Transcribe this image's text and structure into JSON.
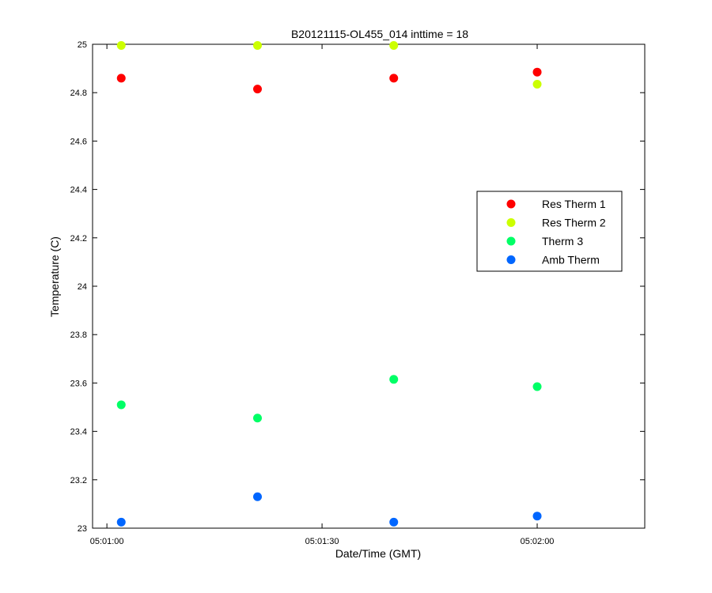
{
  "chart_data": {
    "type": "scatter",
    "title": "B20121115-OL455_014 inttime = 18",
    "xlabel": "Date/Time (GMT)",
    "ylabel": "Temperature (C)",
    "xlim": [
      "05:00:58",
      "05:02:15"
    ],
    "ylim": [
      23,
      25
    ],
    "x_ticks": [
      "05:01:00",
      "05:01:30",
      "05:02:00"
    ],
    "y_ticks": [
      "23",
      "23.2",
      "23.4",
      "23.6",
      "23.8",
      "24",
      "24.2",
      "24.4",
      "24.6",
      "24.8",
      "25"
    ],
    "grid": false,
    "legend_position": "right",
    "x": [
      "05:01:02",
      "05:01:21",
      "05:01:40",
      "05:02:00"
    ],
    "series": [
      {
        "name": "Res Therm 1",
        "color": "#ff0000",
        "values": [
          24.86,
          24.815,
          24.86,
          24.885
        ]
      },
      {
        "name": "Res Therm 2",
        "color": "#ccff00",
        "values": [
          24.995,
          24.995,
          24.995,
          24.835
        ]
      },
      {
        "name": "Therm 3",
        "color": "#00ff66",
        "values": [
          23.51,
          23.455,
          23.615,
          23.585
        ]
      },
      {
        "name": "Amb Therm",
        "color": "#0066ff",
        "values": [
          23.025,
          23.13,
          23.025,
          23.05
        ]
      }
    ]
  }
}
